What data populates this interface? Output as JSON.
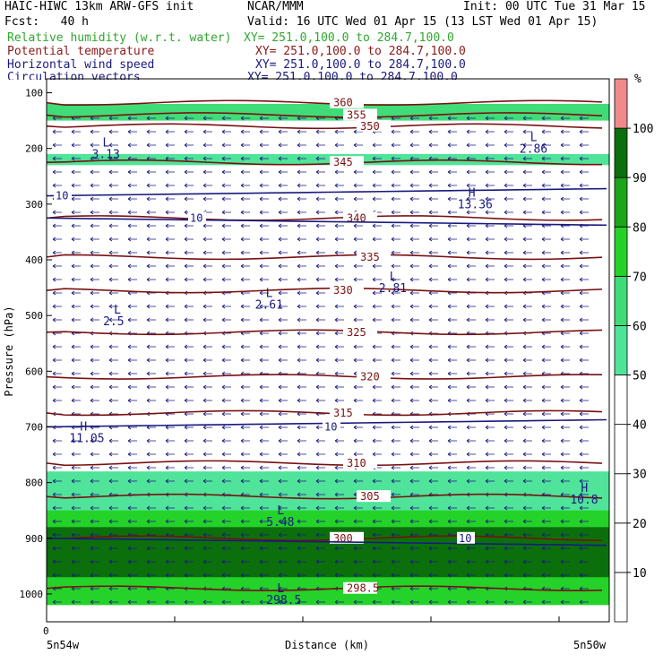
{
  "header": {
    "model": "HAIC-HIWC 13km ARW-GFS init",
    "center": "NCAR/MMM",
    "init": "Init: 00 UTC Tue 31 Mar 15",
    "fcst": "Fcst:   40 h",
    "valid": "Valid: 16 UTC Wed 01 Apr 15 (13 LST Wed 01 Apr 15)",
    "fields": [
      {
        "name": "Relative humidity (w.r.t. water)",
        "xy": "XY= 251.0,100.0 to 284.7,100.0",
        "color": "#2ea82e"
      },
      {
        "name": "Potential temperature",
        "xy": "XY= 251.0,100.0 to 284.7,100.0",
        "color": "#8b1a1a"
      },
      {
        "name": "Horizontal wind speed",
        "xy": "XY= 251.0,100.0 to 284.7,100.0",
        "color": "#1a1a80"
      },
      {
        "name": "Circulation vectors",
        "xy": "XY= 251.0,100.0 to 284.7,100.0",
        "color": "#1a1a80"
      }
    ]
  },
  "chart_data": {
    "type": "heatmap",
    "title": "Relative humidity (w.r.t. water)",
    "xlabel": "Distance (km)",
    "ylabel": "Pressure (hPa)",
    "x_start_label": "5n54w",
    "x_end_label": "5n50w",
    "x_zero_label": "0",
    "yticks": [
      100,
      200,
      300,
      400,
      500,
      600,
      700,
      800,
      900,
      1000
    ],
    "ylim": [
      1050,
      75
    ],
    "colorbar": {
      "unit": "%",
      "levels": [
        10,
        20,
        30,
        40,
        50,
        60,
        70,
        80,
        90,
        100
      ],
      "colors": [
        "#ffffff",
        "#ffffff",
        "#ffffff",
        "#ffffff",
        "#ffffff",
        "#50e39a",
        "#40dc78",
        "#25d22a",
        "#1aa51a",
        "#0b700b",
        "#f08a8a"
      ]
    },
    "rh_layers": [
      {
        "pressure": [
          150,
          120
        ],
        "rh": 60
      },
      {
        "pressure": [
          230,
          210
        ],
        "rh": 55
      },
      {
        "pressure": [
          870,
          780
        ],
        "rh": 55
      },
      {
        "pressure": [
          1010,
          850
        ],
        "rh": 75
      },
      {
        "pressure": [
          970,
          880
        ],
        "rh": 90
      },
      {
        "pressure": [
          1020,
          990
        ],
        "rh": 70
      }
    ],
    "theta_contours": [
      {
        "label": "360",
        "pressure": 118
      },
      {
        "label": "355",
        "pressure": 140
      },
      {
        "label": "350",
        "pressure": 160
      },
      {
        "label": "345",
        "pressure": 225
      },
      {
        "label": "340",
        "pressure": 325
      },
      {
        "label": "335",
        "pressure": 395
      },
      {
        "label": "330",
        "pressure": 455
      },
      {
        "label": "325",
        "pressure": 530
      },
      {
        "label": "320",
        "pressure": 610
      },
      {
        "label": "315",
        "pressure": 675
      },
      {
        "label": "310",
        "pressure": 765
      },
      {
        "label": "305",
        "pressure": 825
      },
      {
        "label": "300",
        "pressure": 900
      },
      {
        "label": "298.5",
        "pressure": 990
      }
    ],
    "wind_contours": [
      {
        "label": "10",
        "pressure": 285
      },
      {
        "label": "10",
        "pressure": 325
      },
      {
        "label": "10",
        "pressure": 700
      },
      {
        "label": "10",
        "pressure": 900
      }
    ],
    "extrema": [
      {
        "kind": "L",
        "value": "3.13",
        "x_frac": 0.09,
        "pressure": 200
      },
      {
        "kind": "L",
        "value": "2.86",
        "x_frac": 0.85,
        "pressure": 190
      },
      {
        "kind": "H",
        "value": "13.36",
        "x_frac": 0.74,
        "pressure": 290
      },
      {
        "kind": "L",
        "value": "2.81",
        "x_frac": 0.6,
        "pressure": 440
      },
      {
        "kind": "L",
        "value": "2.61",
        "x_frac": 0.38,
        "pressure": 470
      },
      {
        "kind": "L",
        "value": "2.5",
        "x_frac": 0.11,
        "pressure": 500
      },
      {
        "kind": "H",
        "value": "11.05",
        "x_frac": 0.05,
        "pressure": 710
      },
      {
        "kind": "H",
        "value": "10.8",
        "x_frac": 0.94,
        "pressure": 820
      },
      {
        "kind": "L",
        "value": "5.48",
        "x_frac": 0.4,
        "pressure": 860
      },
      {
        "kind": "L",
        "value": "298.5",
        "x_frac": 0.4,
        "pressure": 1000
      }
    ]
  }
}
